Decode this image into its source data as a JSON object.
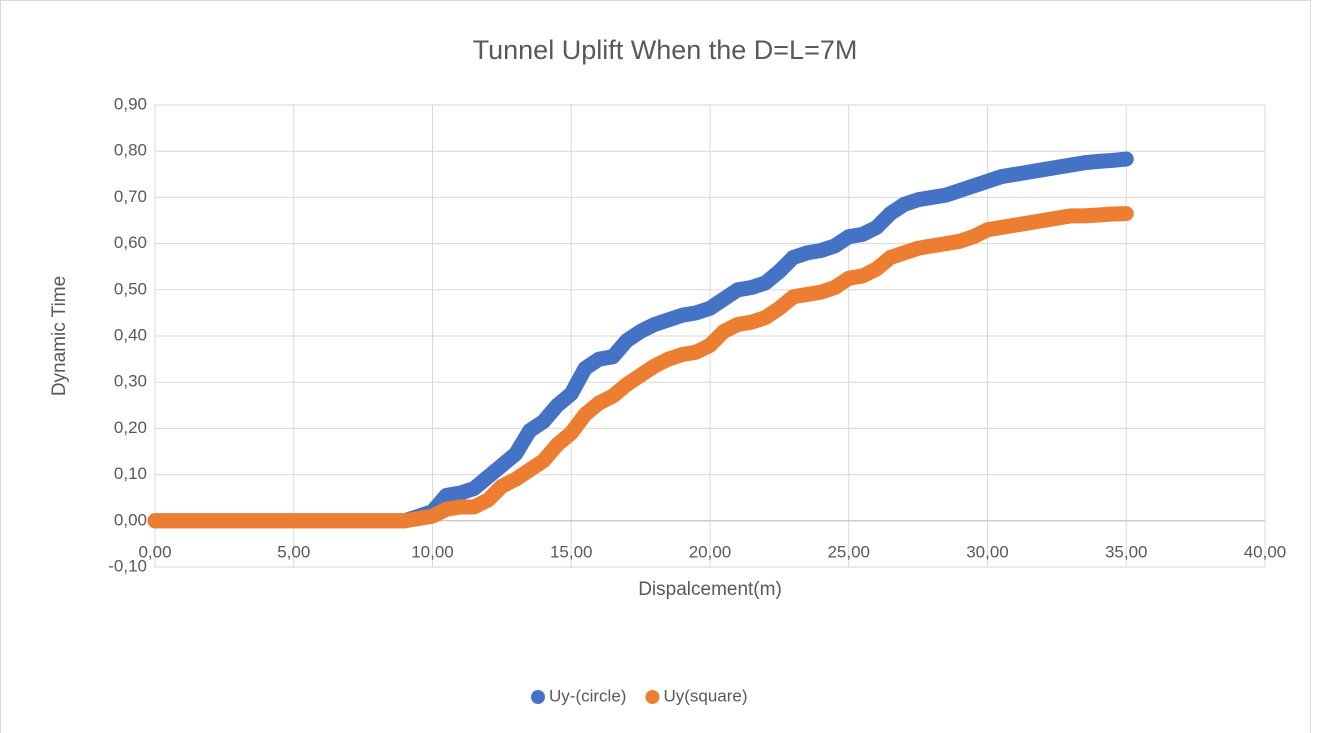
{
  "chart_data": {
    "type": "line",
    "title": "Tunnel Uplift When the D=L=7M",
    "xlabel": "Dispalcement(m)",
    "ylabel": "Dynamic Time",
    "x": [
      0,
      0.5,
      1,
      1.5,
      2,
      2.5,
      3,
      3.5,
      4,
      4.5,
      5,
      5.5,
      6,
      6.5,
      7,
      7.5,
      8,
      8.5,
      9,
      9.5,
      10,
      10.5,
      11,
      11.5,
      12,
      12.5,
      13,
      13.5,
      14,
      14.5,
      15,
      15.5,
      16,
      16.5,
      17,
      17.5,
      18,
      18.5,
      19,
      19.5,
      20,
      20.5,
      21,
      21.5,
      22,
      22.5,
      23,
      23.5,
      24,
      24.5,
      25,
      25.5,
      26,
      26.5,
      27,
      27.5,
      28,
      28.5,
      29,
      29.5,
      30,
      30.5,
      31,
      31.5,
      32,
      32.5,
      33,
      33.5,
      34,
      34.5,
      35
    ],
    "series": [
      {
        "name": "Uy-(circle)",
        "color": "#4472c4",
        "values": [
          0,
          0,
          0,
          0,
          0,
          0,
          0,
          0,
          0,
          0,
          0,
          0,
          0,
          0,
          0,
          0,
          0,
          0,
          0,
          0.01,
          0.02,
          0.055,
          0.06,
          0.07,
          0.095,
          0.12,
          0.145,
          0.195,
          0.215,
          0.25,
          0.275,
          0.33,
          0.35,
          0.355,
          0.39,
          0.41,
          0.425,
          0.435,
          0.445,
          0.45,
          0.46,
          0.48,
          0.5,
          0.505,
          0.515,
          0.54,
          0.57,
          0.58,
          0.585,
          0.595,
          0.615,
          0.62,
          0.635,
          0.665,
          0.685,
          0.695,
          0.7,
          0.705,
          0.715,
          0.725,
          0.735,
          0.745,
          0.75,
          0.755,
          0.76,
          0.765,
          0.77,
          0.775,
          0.778,
          0.78,
          0.783
        ]
      },
      {
        "name": "Uy(square)",
        "color": "#ed7d31",
        "values": [
          0,
          0,
          0,
          0,
          0,
          0,
          0,
          0,
          0,
          0,
          0,
          0,
          0,
          0,
          0,
          0,
          0,
          0,
          0,
          0.005,
          0.01,
          0.025,
          0.03,
          0.03,
          0.045,
          0.075,
          0.09,
          0.11,
          0.13,
          0.165,
          0.19,
          0.23,
          0.255,
          0.27,
          0.295,
          0.315,
          0.335,
          0.35,
          0.36,
          0.365,
          0.38,
          0.41,
          0.425,
          0.43,
          0.44,
          0.46,
          0.485,
          0.49,
          0.495,
          0.505,
          0.525,
          0.53,
          0.545,
          0.57,
          0.58,
          0.59,
          0.595,
          0.6,
          0.605,
          0.615,
          0.63,
          0.635,
          0.64,
          0.645,
          0.65,
          0.655,
          0.66,
          0.66,
          0.662,
          0.664,
          0.665
        ]
      }
    ],
    "xlim": [
      0,
      40
    ],
    "xticks": [
      {
        "value": 0,
        "label": "0,00"
      },
      {
        "value": 5,
        "label": "5,00"
      },
      {
        "value": 10,
        "label": "10,00"
      },
      {
        "value": 15,
        "label": "15,00"
      },
      {
        "value": 20,
        "label": "20,00"
      },
      {
        "value": 25,
        "label": "25,00"
      },
      {
        "value": 30,
        "label": "30,00"
      },
      {
        "value": 35,
        "label": "35,00"
      },
      {
        "value": 40,
        "label": "40,00"
      }
    ],
    "ylim": [
      -0.1,
      0.9
    ],
    "yticks": [
      {
        "value": -0.1,
        "label": "-0,10"
      },
      {
        "value": 0,
        "label": "0,00"
      },
      {
        "value": 0.1,
        "label": "0,10"
      },
      {
        "value": 0.2,
        "label": "0,20"
      },
      {
        "value": 0.3,
        "label": "0,30"
      },
      {
        "value": 0.4,
        "label": "0,40"
      },
      {
        "value": 0.5,
        "label": "0,50"
      },
      {
        "value": 0.6,
        "label": "0,60"
      },
      {
        "value": 0.7,
        "label": "0,70"
      },
      {
        "value": 0.8,
        "label": "0,80"
      },
      {
        "value": 0.9,
        "label": "0,90"
      }
    ],
    "grid": true,
    "legend": "bottom"
  }
}
